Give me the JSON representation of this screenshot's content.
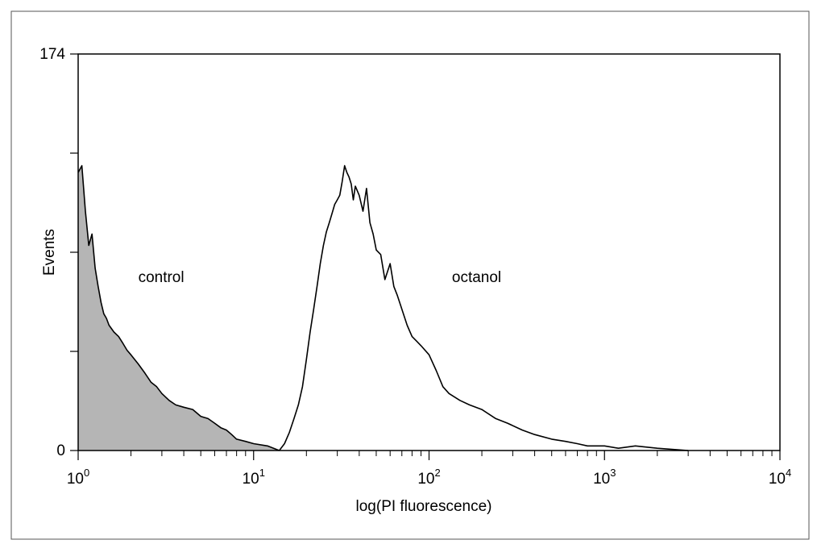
{
  "chart_data": {
    "type": "area",
    "xscale": "log",
    "xlim": [
      1,
      10000
    ],
    "ylim": [
      0,
      174
    ],
    "xlabel": "log(PI fluorescence)",
    "ylabel": "Events",
    "yticks": [
      0,
      174
    ],
    "xticks": [
      {
        "value": 1,
        "base": "10",
        "exp": "0"
      },
      {
        "value": 10,
        "base": "10",
        "exp": "1"
      },
      {
        "value": 100,
        "base": "10",
        "exp": "2"
      },
      {
        "value": 1000,
        "base": "10",
        "exp": "3"
      },
      {
        "value": 10000,
        "base": "10",
        "exp": "4"
      }
    ],
    "grid": false,
    "series": [
      {
        "name": "control",
        "fill": "#b5b5b5",
        "x": [
          1.0,
          1.05,
          1.1,
          1.15,
          1.2,
          1.25,
          1.3,
          1.35,
          1.4,
          1.45,
          1.5,
          1.6,
          1.7,
          1.8,
          1.9,
          2.0,
          2.2,
          2.4,
          2.6,
          2.8,
          3.0,
          3.3,
          3.6,
          4.0,
          4.5,
          5.0,
          5.5,
          6.0,
          6.5,
          7.0,
          7.5,
          8.0,
          9.0,
          10.0,
          12.0,
          14.0
        ],
        "y": [
          122,
          125,
          105,
          90,
          95,
          80,
          72,
          65,
          60,
          58,
          55,
          52,
          50,
          47,
          44,
          42,
          38,
          34,
          30,
          28,
          25,
          22,
          20,
          19,
          18,
          15,
          14,
          12,
          10,
          9,
          7,
          5,
          4,
          3,
          2,
          0
        ]
      },
      {
        "name": "octanol",
        "fill": "none",
        "x": [
          14,
          15,
          16,
          17,
          18,
          19,
          20,
          21,
          22,
          23,
          24,
          25,
          26,
          27,
          28,
          29,
          30,
          31,
          32,
          33,
          34,
          35,
          36,
          37,
          38,
          40,
          42,
          44,
          46,
          48,
          50,
          53,
          56,
          60,
          63,
          66,
          70,
          75,
          80,
          85,
          90,
          100,
          110,
          120,
          130,
          150,
          170,
          200,
          240,
          280,
          340,
          400,
          500,
          600,
          700,
          800,
          1000,
          1200,
          1500,
          2000,
          3000
        ],
        "y": [
          0,
          3,
          8,
          14,
          20,
          28,
          40,
          52,
          62,
          72,
          82,
          90,
          96,
          100,
          104,
          108,
          110,
          112,
          118,
          125,
          122,
          120,
          117,
          110,
          116,
          112,
          105,
          115,
          100,
          95,
          88,
          86,
          75,
          82,
          72,
          68,
          62,
          55,
          50,
          48,
          46,
          42,
          35,
          28,
          25,
          22,
          20,
          18,
          14,
          12,
          9,
          7,
          5,
          4,
          3,
          2,
          2,
          1,
          2,
          1,
          0
        ]
      }
    ],
    "annotations": [
      {
        "text": "control",
        "x": 2.2,
        "y": 74
      },
      {
        "text": "octanol",
        "x": 135,
        "y": 74
      }
    ]
  }
}
